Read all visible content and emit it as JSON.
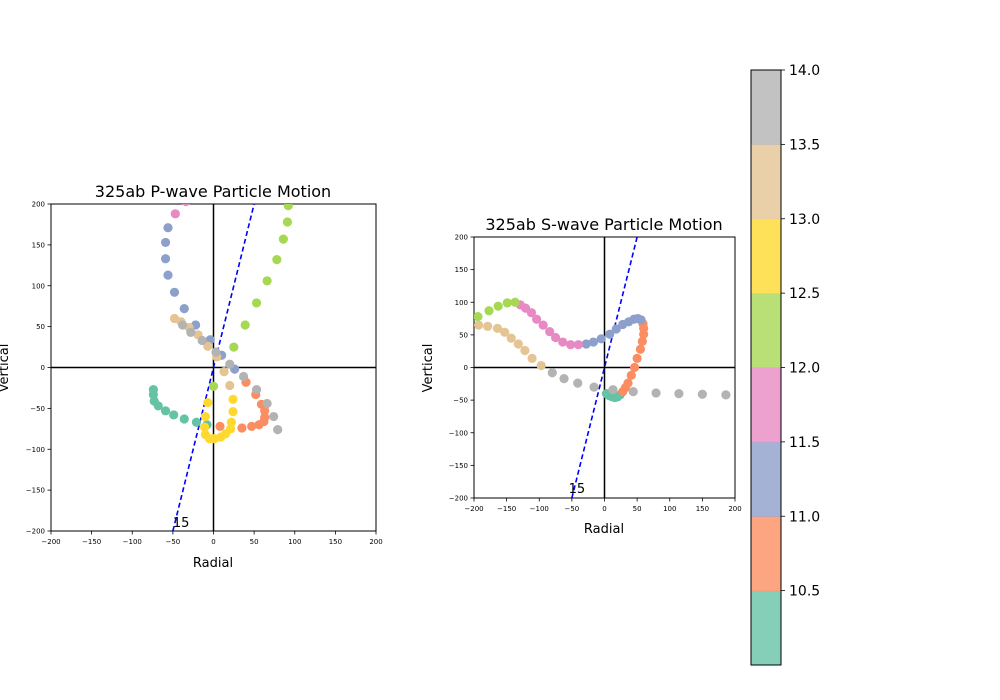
{
  "chart_data": [
    {
      "type": "scatter",
      "title": "325ab P-wave Particle Motion",
      "xlabel": "Radial",
      "ylabel": "Vertical",
      "xlim": [
        -200,
        200
      ],
      "ylim": [
        -200,
        200
      ],
      "ticks": [
        -200,
        -150,
        -100,
        -50,
        0,
        50,
        100,
        150,
        200
      ],
      "tick_labels": [
        "−200",
        "−150",
        "−100",
        "−50",
        "0",
        "50",
        "100",
        "150",
        "200"
      ],
      "annotation": "15",
      "annotation_point": [
        -50,
        -195
      ],
      "reference_line": {
        "x": [
          -50,
          50
        ],
        "y": [
          -200,
          200
        ],
        "color": "#0000ff",
        "style": "dashed"
      },
      "points": [
        {
          "x": -74,
          "y": -27,
          "c": 10.05
        },
        {
          "x": -74,
          "y": -33,
          "c": 10.1
        },
        {
          "x": -73,
          "y": -41,
          "c": 10.15
        },
        {
          "x": -68,
          "y": -47,
          "c": 10.2
        },
        {
          "x": -59,
          "y": -53,
          "c": 10.25
        },
        {
          "x": -49,
          "y": -58,
          "c": 10.3
        },
        {
          "x": -36,
          "y": -63,
          "c": 10.35
        },
        {
          "x": -21,
          "y": -67,
          "c": 10.4
        },
        {
          "x": -8,
          "y": -70,
          "c": 10.45
        },
        {
          "x": 8,
          "y": -72,
          "c": 10.5
        },
        {
          "x": 35,
          "y": -74,
          "c": 10.6
        },
        {
          "x": 47,
          "y": -72,
          "c": 10.7
        },
        {
          "x": 56,
          "y": -70,
          "c": 10.75
        },
        {
          "x": 62,
          "y": -66,
          "c": 10.8
        },
        {
          "x": 63,
          "y": -61,
          "c": 10.85
        },
        {
          "x": 63,
          "y": -53,
          "c": 10.9
        },
        {
          "x": 59,
          "y": -45,
          "c": 10.93
        },
        {
          "x": 52,
          "y": -33,
          "c": 10.96
        },
        {
          "x": 40,
          "y": -18,
          "c": 10.99
        },
        {
          "x": 26,
          "y": -2,
          "c": 11.05
        },
        {
          "x": 10,
          "y": 15,
          "c": 11.1
        },
        {
          "x": -4,
          "y": 34,
          "c": 11.15
        },
        {
          "x": -22,
          "y": 52,
          "c": 11.2
        },
        {
          "x": -36,
          "y": 72,
          "c": 11.25
        },
        {
          "x": -48,
          "y": 92,
          "c": 11.3
        },
        {
          "x": -56,
          "y": 113,
          "c": 11.35
        },
        {
          "x": -59,
          "y": 133,
          "c": 11.4
        },
        {
          "x": -59,
          "y": 153,
          "c": 11.45
        },
        {
          "x": -56,
          "y": 171,
          "c": 11.48
        },
        {
          "x": -47,
          "y": 188,
          "c": 11.55
        },
        {
          "x": -34,
          "y": 203,
          "c": 11.65
        },
        {
          "x": 0,
          "y": -23,
          "c": 12.05
        },
        {
          "x": 25,
          "y": 25,
          "c": 12.1
        },
        {
          "x": 39,
          "y": 52,
          "c": 12.15
        },
        {
          "x": 53,
          "y": 79,
          "c": 12.2
        },
        {
          "x": 66,
          "y": 106,
          "c": 12.25
        },
        {
          "x": 78,
          "y": 132,
          "c": 12.3
        },
        {
          "x": 86,
          "y": 157,
          "c": 12.35
        },
        {
          "x": 91,
          "y": 178,
          "c": 12.4
        },
        {
          "x": 92,
          "y": 198,
          "c": 12.45
        },
        {
          "x": -7,
          "y": -43,
          "c": 12.55
        },
        {
          "x": -10,
          "y": -60,
          "c": 12.6
        },
        {
          "x": -11,
          "y": -73,
          "c": 12.65
        },
        {
          "x": -10,
          "y": -82,
          "c": 12.7
        },
        {
          "x": -5,
          "y": -87,
          "c": 12.75
        },
        {
          "x": 1,
          "y": -87,
          "c": 12.78
        },
        {
          "x": 9,
          "y": -85,
          "c": 12.81
        },
        {
          "x": 15,
          "y": -81,
          "c": 12.84
        },
        {
          "x": 21,
          "y": -75,
          "c": 12.87
        },
        {
          "x": 22,
          "y": -67,
          "c": 12.9
        },
        {
          "x": 24,
          "y": -54,
          "c": 12.93
        },
        {
          "x": 24,
          "y": -39,
          "c": 12.96
        },
        {
          "x": 20,
          "y": -22,
          "c": 13.05
        },
        {
          "x": 13,
          "y": -5,
          "c": 13.1
        },
        {
          "x": 4,
          "y": 13,
          "c": 13.15
        },
        {
          "x": -7,
          "y": 26,
          "c": 13.2
        },
        {
          "x": -19,
          "y": 40,
          "c": 13.25
        },
        {
          "x": -30,
          "y": 49,
          "c": 13.3
        },
        {
          "x": -40,
          "y": 56,
          "c": 13.35
        },
        {
          "x": -48,
          "y": 60,
          "c": 13.4
        },
        {
          "x": -38,
          "y": 52,
          "c": 13.55
        },
        {
          "x": -28,
          "y": 43,
          "c": 13.6
        },
        {
          "x": -14,
          "y": 33,
          "c": 13.65
        },
        {
          "x": 3,
          "y": 19,
          "c": 13.7
        },
        {
          "x": 20,
          "y": 4,
          "c": 13.75
        },
        {
          "x": 37,
          "y": -11,
          "c": 13.8
        },
        {
          "x": 53,
          "y": -27,
          "c": 13.85
        },
        {
          "x": 66,
          "y": -44,
          "c": 13.9
        },
        {
          "x": 74,
          "y": -60,
          "c": 13.95
        },
        {
          "x": 79,
          "y": -76,
          "c": 13.98
        }
      ]
    },
    {
      "type": "scatter",
      "title": "325ab S-wave Particle Motion",
      "xlabel": "Radial",
      "ylabel": "Vertical",
      "xlim": [
        -200,
        200
      ],
      "ylim": [
        -200,
        200
      ],
      "ticks": [
        -200,
        -150,
        -100,
        -50,
        0,
        50,
        100,
        150,
        200
      ],
      "tick_labels": [
        "−200",
        "−150",
        "−100",
        "−50",
        "0",
        "50",
        "100",
        "150",
        "200"
      ],
      "annotation": "15",
      "annotation_point": [
        -55,
        -192
      ],
      "reference_line": {
        "x": [
          -50,
          50
        ],
        "y": [
          -200,
          200
        ],
        "color": "#0000ff",
        "style": "dashed"
      },
      "points": [
        {
          "x": 3,
          "y": -40,
          "c": 10.05
        },
        {
          "x": 7,
          "y": -43,
          "c": 10.1
        },
        {
          "x": 12,
          "y": -45,
          "c": 10.15
        },
        {
          "x": 16,
          "y": -46,
          "c": 10.2
        },
        {
          "x": 20,
          "y": -45,
          "c": 10.25
        },
        {
          "x": 24,
          "y": -42,
          "c": 10.3
        },
        {
          "x": 28,
          "y": -37,
          "c": 10.6
        },
        {
          "x": 32,
          "y": -31,
          "c": 10.65
        },
        {
          "x": 36,
          "y": -24,
          "c": 10.7
        },
        {
          "x": 41,
          "y": -12,
          "c": 10.75
        },
        {
          "x": 46,
          "y": 0,
          "c": 10.8
        },
        {
          "x": 50,
          "y": 14,
          "c": 10.85
        },
        {
          "x": 55,
          "y": 28,
          "c": 10.88
        },
        {
          "x": 58,
          "y": 40,
          "c": 10.91
        },
        {
          "x": 60,
          "y": 51,
          "c": 10.94
        },
        {
          "x": 60,
          "y": 60,
          "c": 10.97
        },
        {
          "x": 59,
          "y": 67,
          "c": 10.99
        },
        {
          "x": 56,
          "y": 73,
          "c": 11.05
        },
        {
          "x": 51,
          "y": 75,
          "c": 11.1
        },
        {
          "x": 45,
          "y": 74,
          "c": 11.15
        },
        {
          "x": 37,
          "y": 70,
          "c": 11.2
        },
        {
          "x": 28,
          "y": 66,
          "c": 11.25
        },
        {
          "x": 18,
          "y": 59,
          "c": 11.3
        },
        {
          "x": 8,
          "y": 51,
          "c": 11.35
        },
        {
          "x": -5,
          "y": 44,
          "c": 11.4
        },
        {
          "x": -17,
          "y": 39,
          "c": 11.45
        },
        {
          "x": -28,
          "y": 36,
          "c": 11.48
        },
        {
          "x": -40,
          "y": 35,
          "c": 11.55
        },
        {
          "x": -52,
          "y": 35,
          "c": 11.6
        },
        {
          "x": -64,
          "y": 39,
          "c": 11.65
        },
        {
          "x": -75,
          "y": 46,
          "c": 11.7
        },
        {
          "x": -84,
          "y": 55,
          "c": 11.75
        },
        {
          "x": -94,
          "y": 65,
          "c": 11.8
        },
        {
          "x": -104,
          "y": 74,
          "c": 11.85
        },
        {
          "x": -112,
          "y": 84,
          "c": 11.88
        },
        {
          "x": -121,
          "y": 91,
          "c": 11.91
        },
        {
          "x": -129,
          "y": 96,
          "c": 11.94
        },
        {
          "x": -137,
          "y": 100,
          "c": 12.05
        },
        {
          "x": -149,
          "y": 99,
          "c": 12.1
        },
        {
          "x": -163,
          "y": 94,
          "c": 12.15
        },
        {
          "x": -177,
          "y": 87,
          "c": 12.2
        },
        {
          "x": -194,
          "y": 78,
          "c": 12.25
        },
        {
          "x": -193,
          "y": 65,
          "c": 13.05
        },
        {
          "x": -179,
          "y": 63,
          "c": 13.1
        },
        {
          "x": -164,
          "y": 60,
          "c": 13.15
        },
        {
          "x": -153,
          "y": 54,
          "c": 13.2
        },
        {
          "x": -143,
          "y": 45,
          "c": 13.25
        },
        {
          "x": -132,
          "y": 36,
          "c": 13.3
        },
        {
          "x": -122,
          "y": 26,
          "c": 13.35
        },
        {
          "x": -111,
          "y": 14,
          "c": 13.4
        },
        {
          "x": -97,
          "y": 3,
          "c": 13.45
        },
        {
          "x": -80,
          "y": -8,
          "c": 13.55
        },
        {
          "x": -62,
          "y": -17,
          "c": 13.6
        },
        {
          "x": -41,
          "y": -24,
          "c": 13.65
        },
        {
          "x": -16,
          "y": -30,
          "c": 13.7
        },
        {
          "x": 13,
          "y": -34,
          "c": 13.75
        },
        {
          "x": 44,
          "y": -37,
          "c": 13.8
        },
        {
          "x": 79,
          "y": -39,
          "c": 13.85
        },
        {
          "x": 114,
          "y": -40,
          "c": 13.9
        },
        {
          "x": 150,
          "y": -41,
          "c": 13.95
        },
        {
          "x": 186,
          "y": -42,
          "c": 13.98
        }
      ]
    }
  ],
  "colorbar": {
    "range": [
      10.0,
      14.0
    ],
    "ticks": [
      "14.0",
      "13.5",
      "13.0",
      "12.5",
      "12.0",
      "11.5",
      "11.0",
      "10.5"
    ],
    "tick_values": [
      14.0,
      13.5,
      13.0,
      12.5,
      12.0,
      11.5,
      11.0,
      10.5
    ],
    "colormap": "Set2",
    "colors": [
      "#66c2a5",
      "#fc8d62",
      "#8da0cb",
      "#e78ac3",
      "#a6d854",
      "#ffd92f",
      "#e5c494",
      "#b3b3b3"
    ]
  }
}
